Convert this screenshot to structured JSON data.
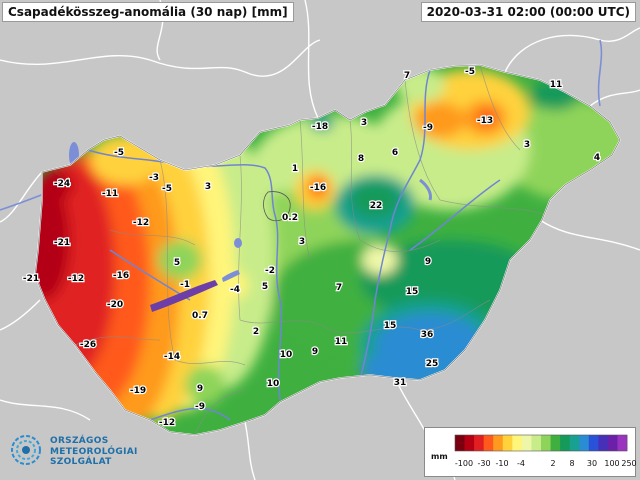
{
  "header": {
    "title": "Csapadékösszeg-anomália (30 nap) [mm]",
    "timestamp": "2020-03-31 02:00 (00:00 UTC)"
  },
  "legend": {
    "unit": "mm",
    "tick_labels": [
      "-100",
      "-30",
      "-10",
      "-4",
      "2",
      "8",
      "30",
      "100",
      "250"
    ],
    "colors": [
      "#7a0010",
      "#b40012",
      "#e02020",
      "#ff5a1e",
      "#ff9a1e",
      "#ffd23c",
      "#fff57a",
      "#eef7a8",
      "#c8ec8a",
      "#8fd45a",
      "#3fb040",
      "#169a5a",
      "#18a090",
      "#2a8cd2",
      "#2a52d8",
      "#4630b8",
      "#6a20a8",
      "#9a34c0"
    ]
  },
  "logo": {
    "line1": "ORSZÁGOS",
    "line2": "METEOROLÓGIAI",
    "line3": "SZOLGÁLAT"
  },
  "map_labels": [
    {
      "id": "west-24",
      "text": "-24"
    },
    {
      "id": "west-5",
      "text": "-5"
    },
    {
      "id": "west-3",
      "text": "-3"
    },
    {
      "id": "west-11",
      "text": "-11"
    },
    {
      "id": "west-5b",
      "text": "-5"
    },
    {
      "id": "north-3",
      "text": "3"
    },
    {
      "id": "west-12",
      "text": "-12"
    },
    {
      "id": "west-21",
      "text": "-21"
    },
    {
      "id": "west-12b",
      "text": "-12"
    },
    {
      "id": "west-16",
      "text": "-16"
    },
    {
      "id": "west-21b",
      "text": "-21"
    },
    {
      "id": "lake-5",
      "text": "5"
    },
    {
      "id": "lake-1",
      "text": "-1"
    },
    {
      "id": "west-20",
      "text": "-20"
    },
    {
      "id": "west-4",
      "text": "-4"
    },
    {
      "id": "west-0.7",
      "text": "0.7"
    },
    {
      "id": "west-26",
      "text": "-26"
    },
    {
      "id": "west-14",
      "text": "-14"
    },
    {
      "id": "west-19",
      "text": "-19"
    },
    {
      "id": "south-9",
      "text": "9"
    },
    {
      "id": "south-9b",
      "text": "-9"
    },
    {
      "id": "south-12",
      "text": "-12"
    },
    {
      "id": "north-18",
      "text": "-18"
    },
    {
      "id": "north-3b",
      "text": "3"
    },
    {
      "id": "north-1",
      "text": "1"
    },
    {
      "id": "north-16",
      "text": "-16"
    },
    {
      "id": "north-8",
      "text": "8"
    },
    {
      "id": "north-6",
      "text": "6"
    },
    {
      "id": "center-0.2",
      "text": "0.2"
    },
    {
      "id": "center-22",
      "text": "22"
    },
    {
      "id": "center-3",
      "text": "3"
    },
    {
      "id": "center-2",
      "text": "-2"
    },
    {
      "id": "center-5",
      "text": "5"
    },
    {
      "id": "center-2b",
      "text": "2"
    },
    {
      "id": "center-7",
      "text": "7"
    },
    {
      "id": "center-9",
      "text": "9"
    },
    {
      "id": "center-15",
      "text": "15"
    },
    {
      "id": "center-15b",
      "text": "15"
    },
    {
      "id": "center-11",
      "text": "11"
    },
    {
      "id": "center-10",
      "text": "10"
    },
    {
      "id": "center-9b",
      "text": "9"
    },
    {
      "id": "south-10",
      "text": "10"
    },
    {
      "id": "se-36",
      "text": "36"
    },
    {
      "id": "se-25",
      "text": "25"
    },
    {
      "id": "se-31",
      "text": "31"
    },
    {
      "id": "ne-7",
      "text": "7"
    },
    {
      "id": "ne-5",
      "text": "-5"
    },
    {
      "id": "ne-11",
      "text": "11"
    },
    {
      "id": "ne-9",
      "text": "-9"
    },
    {
      "id": "ne-13",
      "text": "-13"
    },
    {
      "id": "ne-3",
      "text": "3"
    },
    {
      "id": "ne-4",
      "text": "4"
    }
  ]
}
